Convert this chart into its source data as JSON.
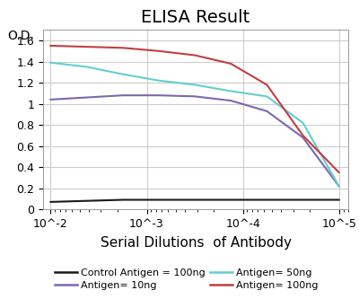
{
  "title": "ELISA Result",
  "od_label": "O.D.",
  "xlabel": "Serial Dilutions  of Antibody",
  "x_tick_labels": [
    "10^-2",
    "10^-3",
    "10^-4",
    "10^-5"
  ],
  "ylim": [
    0,
    1.7
  ],
  "yticks": [
    0,
    0.2,
    0.4,
    0.6,
    0.8,
    1.0,
    1.2,
    1.4,
    1.6
  ],
  "series": [
    {
      "label": "Control Antigen = 100ng",
      "color": "#1a1a1a",
      "y_values": [
        0.07,
        0.08,
        0.09,
        0.09,
        0.09,
        0.09,
        0.09,
        0.09,
        0.09
      ]
    },
    {
      "label": "Antigen= 10ng",
      "color": "#7B68AE",
      "y_values": [
        1.04,
        1.06,
        1.08,
        1.08,
        1.07,
        1.03,
        0.93,
        0.68,
        0.22
      ]
    },
    {
      "label": "Antigen= 50ng",
      "color": "#66CDCD",
      "y_values": [
        1.39,
        1.35,
        1.28,
        1.22,
        1.18,
        1.12,
        1.07,
        0.82,
        0.22
      ]
    },
    {
      "label": "Antigen= 100ng",
      "color": "#C04040",
      "y_values": [
        1.55,
        1.54,
        1.53,
        1.5,
        1.46,
        1.38,
        1.18,
        0.7,
        0.35
      ]
    }
  ],
  "background_color": "#ffffff",
  "grid_color": "#cccccc",
  "title_fontsize": 14,
  "xlabel_fontsize": 11,
  "tick_fontsize": 9,
  "od_fontsize": 10,
  "legend_fontsize": 8
}
